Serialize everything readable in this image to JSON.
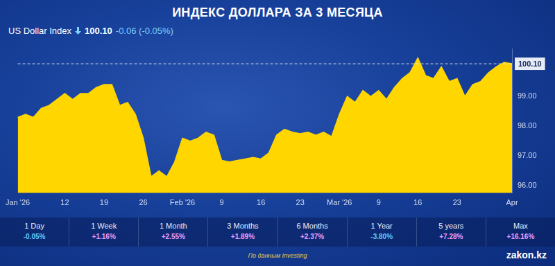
{
  "chart_data": {
    "type": "area",
    "title": "ИНДЕКС ДОЛЛАРА ЗА 3 МЕСЯЦА",
    "color": "#ffd600",
    "categories": [
      "Jan '26",
      null,
      null,
      null,
      null,
      null,
      "12",
      null,
      null,
      null,
      null,
      "19",
      null,
      null,
      null,
      null,
      "26",
      null,
      null,
      null,
      null,
      "Feb '26",
      null,
      null,
      null,
      null,
      "9",
      null,
      null,
      null,
      null,
      "16",
      null,
      null,
      null,
      null,
      "23",
      null,
      null,
      null,
      null,
      "Mar '26",
      null,
      null,
      null,
      null,
      "9",
      null,
      null,
      null,
      null,
      "16",
      null,
      null,
      null,
      null,
      "23",
      null,
      null,
      null,
      null,
      null,
      null,
      "Apr"
    ],
    "values": [
      98.3,
      98.4,
      98.3,
      98.6,
      98.7,
      98.9,
      99.1,
      98.9,
      99.1,
      99.1,
      99.3,
      99.4,
      99.4,
      98.7,
      98.8,
      98.4,
      97.6,
      96.3,
      96.5,
      96.3,
      96.8,
      97.6,
      97.5,
      97.6,
      97.8,
      97.7,
      96.85,
      96.8,
      96.85,
      96.9,
      96.95,
      96.9,
      97.1,
      97.7,
      97.9,
      97.8,
      97.75,
      97.8,
      97.7,
      97.8,
      97.65,
      98.4,
      99.0,
      98.8,
      99.2,
      99.0,
      99.2,
      98.9,
      99.3,
      99.6,
      99.8,
      100.3,
      99.7,
      99.6,
      100.0,
      99.5,
      99.6,
      99.0,
      99.4,
      99.5,
      99.8,
      100.0,
      100.15,
      100.1
    ],
    "ylim": [
      95.75,
      100.6
    ],
    "yticks": [
      {
        "value": 96,
        "label": "96.00"
      },
      {
        "value": 97,
        "label": "97.00"
      },
      {
        "value": 98,
        "label": "98.00"
      },
      {
        "value": 99,
        "label": "99.00"
      }
    ],
    "grid": false,
    "annotations": [
      {
        "y": 100.1,
        "label": "100.10",
        "line_style": "dashed"
      }
    ]
  },
  "quote": {
    "name": "US Dollar Index",
    "price": "100.10",
    "change": "-0.06 (-0.05%)"
  },
  "periods": [
    {
      "label": "1 Day",
      "change": "-0.05%"
    },
    {
      "label": "1 Week",
      "change": "+1.16%"
    },
    {
      "label": "1 Month",
      "change": "+2.55%"
    },
    {
      "label": "3 Months",
      "change": "+1.89%"
    },
    {
      "label": "6 Months",
      "change": "+2.37%"
    },
    {
      "label": "1 Year",
      "change": "-3.80%"
    },
    {
      "label": "5 years",
      "change": "+7.28%"
    },
    {
      "label": "Max",
      "change": "+16.16%"
    }
  ],
  "source": "По данным Investing",
  "brand": "zakon.kz"
}
